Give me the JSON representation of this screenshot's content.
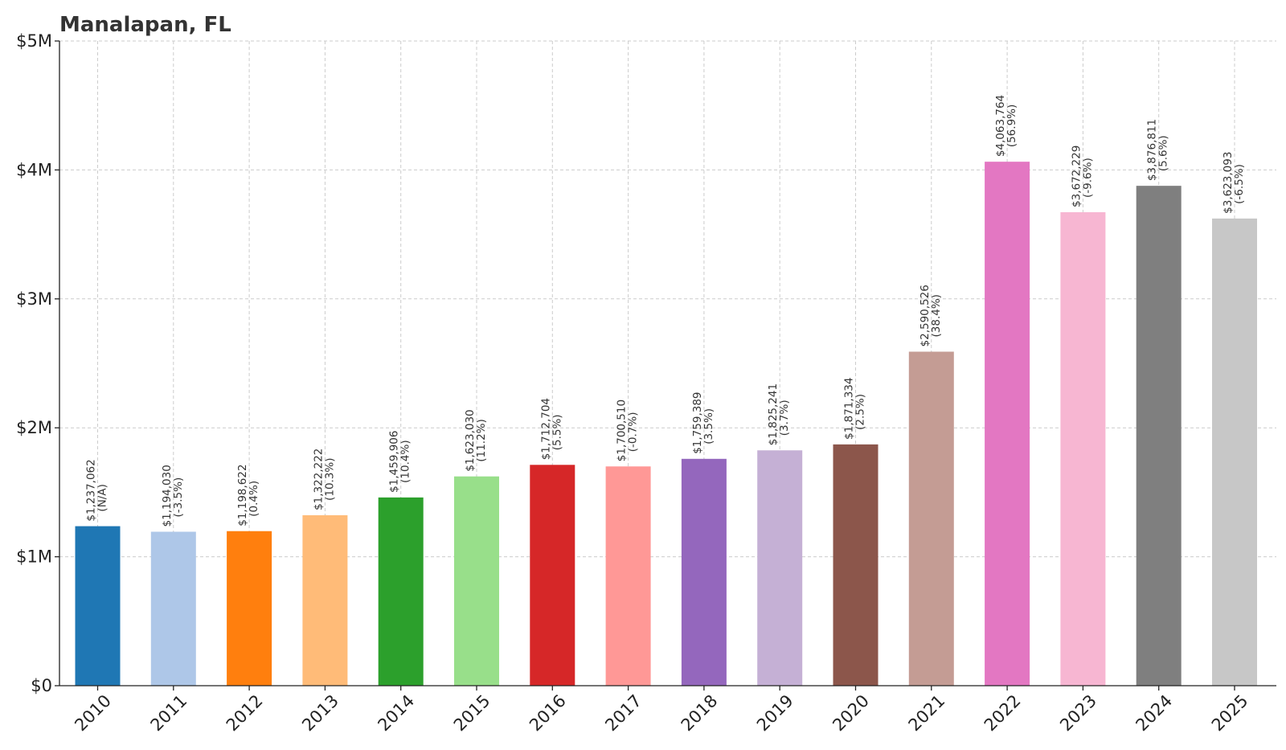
{
  "chart_data": {
    "type": "bar",
    "title": "Manalapan, FL",
    "xlabel": "",
    "ylabel": "",
    "ylim": [
      0,
      5000000
    ],
    "yticks": [
      {
        "value": 0,
        "label": "$0"
      },
      {
        "value": 1000000,
        "label": "$1M"
      },
      {
        "value": 2000000,
        "label": "$2M"
      },
      {
        "value": 3000000,
        "label": "$3M"
      },
      {
        "value": 4000000,
        "label": "$4M"
      },
      {
        "value": 5000000,
        "label": "$5M"
      }
    ],
    "grid": true,
    "categories": [
      "2010",
      "2011",
      "2012",
      "2013",
      "2014",
      "2015",
      "2016",
      "2017",
      "2018",
      "2019",
      "2020",
      "2021",
      "2022",
      "2023",
      "2024",
      "2025"
    ],
    "values": [
      1237062,
      1194030,
      1198622,
      1322222,
      1459906,
      1623030,
      1712704,
      1700510,
      1759389,
      1825241,
      1871334,
      2590526,
      4063764,
      3672229,
      3876811,
      3623093
    ],
    "value_labels": [
      "$1,237,062",
      "$1,194,030",
      "$1,198,622",
      "$1,322,222",
      "$1,459,906",
      "$1,623,030",
      "$1,712,704",
      "$1,700,510",
      "$1,759,389",
      "$1,825,241",
      "$1,871,334",
      "$2,590,526",
      "$4,063,764",
      "$3,672,229",
      "$3,876,811",
      "$3,623,093"
    ],
    "change_labels": [
      "(N/A)",
      "(-3.5%)",
      "(0.4%)",
      "(10.3%)",
      "(10.4%)",
      "(11.2%)",
      "(5.5%)",
      "(-0.7%)",
      "(3.5%)",
      "(3.7%)",
      "(2.5%)",
      "(38.4%)",
      "(56.9%)",
      "(-9.6%)",
      "(5.6%)",
      "(-6.5%)"
    ],
    "colors": [
      "#1f77b4",
      "#aec7e8",
      "#ff7f0e",
      "#ffbb78",
      "#2ca02c",
      "#98df8a",
      "#d62728",
      "#ff9896",
      "#9467bd",
      "#c5b0d5",
      "#8c564b",
      "#c49c94",
      "#e377c2",
      "#f7b6d2",
      "#7f7f7f",
      "#c7c7c7"
    ]
  }
}
